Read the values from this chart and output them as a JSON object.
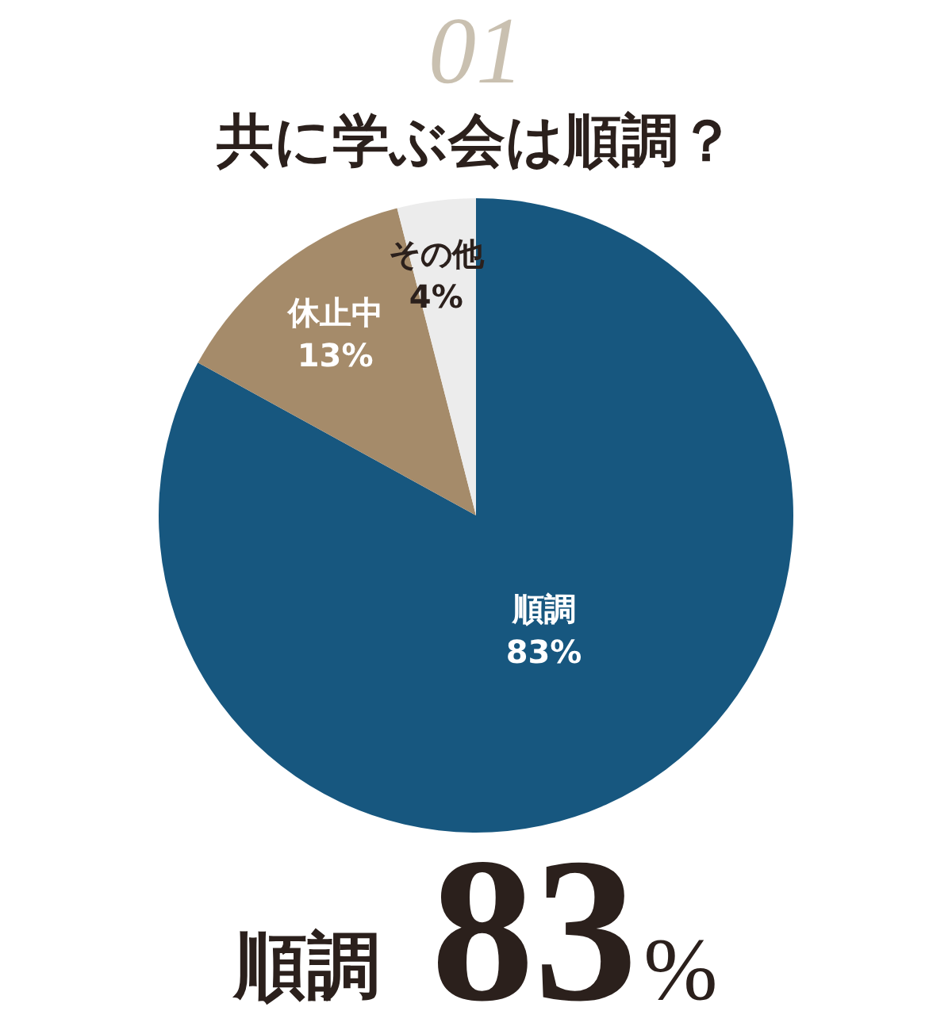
{
  "chart_data": {
    "type": "pie",
    "title": "共に学ぶ会は順調？",
    "categories": [
      "順調",
      "休止中",
      "その他"
    ],
    "values": [
      83,
      13,
      4
    ],
    "colors": [
      "#17577f",
      "#a58b6a",
      "#ececec"
    ],
    "value_labels": [
      "83%",
      "13%",
      "4%"
    ],
    "annotations": [
      "01",
      "順調83%"
    ]
  }
}
